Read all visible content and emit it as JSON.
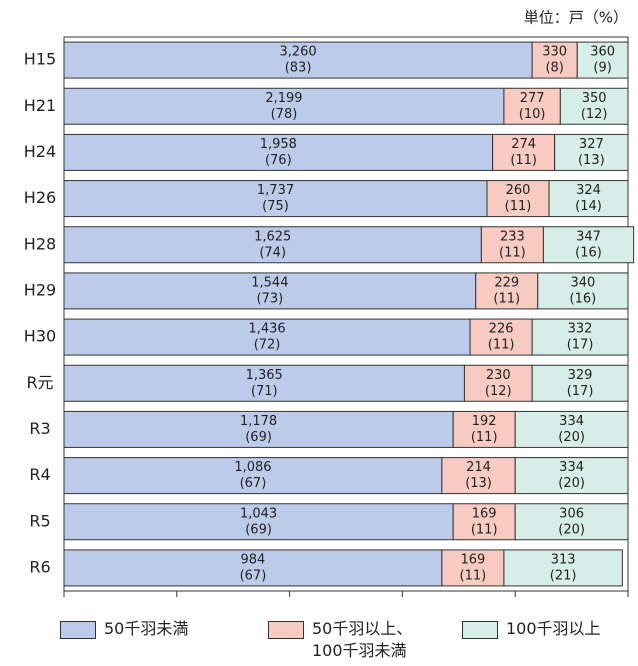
{
  "chart_data": {
    "type": "stacked_barh_percent",
    "unit_label": "単位：戸（%）",
    "categories": [
      "H15",
      "H21",
      "H24",
      "H26",
      "H28",
      "H29",
      "H30",
      "R元",
      "R3",
      "R4",
      "R5",
      "R6"
    ],
    "xlim": [
      0,
      100
    ],
    "xticks": [
      0,
      20,
      40,
      60,
      80,
      100
    ],
    "series": [
      {
        "name": "50千羽未満",
        "color": "#bccbe9",
        "values": [
          83,
          78,
          76,
          75,
          74,
          73,
          72,
          71,
          69,
          67,
          69,
          67
        ],
        "value_labels": [
          "(83)",
          "(78)",
          "(76)",
          "(75)",
          "(74)",
          "(73)",
          "(72)",
          "(71)",
          "(69)",
          "(67)",
          "(69)",
          "(67)"
        ],
        "counts": [
          "3,260",
          "2,199",
          "1,958",
          "1,737",
          "1,625",
          "1,544",
          "1,436",
          "1,365",
          "1,178",
          "1,086",
          "1,043",
          "984"
        ]
      },
      {
        "name": "50千羽以上、100千羽未満",
        "color": "#f7cbc2",
        "values": [
          8,
          10,
          11,
          11,
          11,
          11,
          11,
          12,
          11,
          13,
          11,
          11
        ],
        "value_labels": [
          "(8)",
          "(10)",
          "(11)",
          "(11)",
          "(11)",
          "(11)",
          "(11)",
          "(12)",
          "(11)",
          "(13)",
          "(11)",
          "(11)"
        ],
        "counts": [
          "330",
          "277",
          "274",
          "260",
          "233",
          "229",
          "226",
          "230",
          "192",
          "214",
          "169",
          "169"
        ]
      },
      {
        "name": "100千羽以上",
        "color": "#d7ede7",
        "values": [
          9,
          12,
          13,
          14,
          16,
          16,
          17,
          17,
          20,
          20,
          20,
          21
        ],
        "value_labels": [
          "(9)",
          "(12)",
          "(13)",
          "(14)",
          "(16)",
          "(16)",
          "(17)",
          "(17)",
          "(20)",
          "(20)",
          "(20)",
          "(21)"
        ],
        "counts": [
          "360",
          "350",
          "327",
          "324",
          "347",
          "340",
          "332",
          "329",
          "334",
          "334",
          "306",
          "313"
        ]
      }
    ]
  }
}
